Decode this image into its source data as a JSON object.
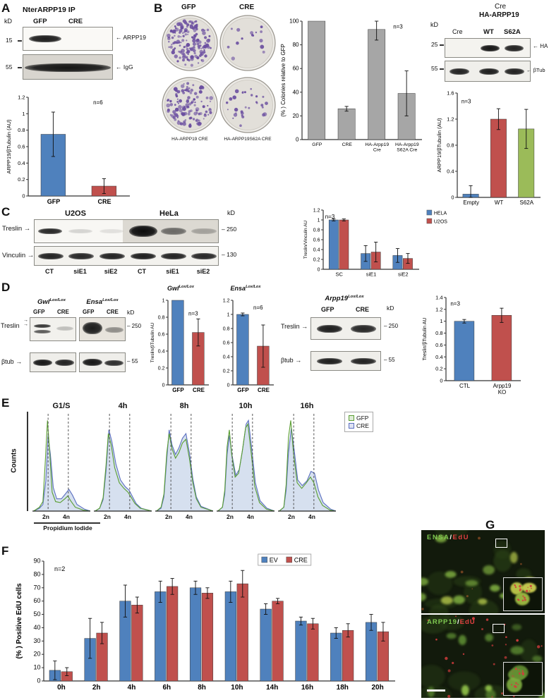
{
  "colors": {
    "blue": "#4f81bd",
    "red": "#c0504d",
    "green": "#9bbb59",
    "gray_bar": "#a6a6a6",
    "gfp_curve": "#5a9e32",
    "cre_curve": "#5b6fc0",
    "cre_fill": "#aec1e0",
    "colony": "#6b4fa0",
    "ensa_green": "#7ec850",
    "edu_red": "#e04040"
  },
  "panelA": {
    "label": "A",
    "blot_title": "NterARPP19 IP",
    "kd": "kD",
    "lanes": [
      "GFP",
      "CRE"
    ],
    "marker_15": "15",
    "marker_55": "55",
    "arrow_arpp19": "← ARPP19",
    "arrow_igg": "← IgG",
    "chart": {
      "type": "bar",
      "n": "n=6",
      "ylabel": "ARPP19/βTubulin (AU)",
      "categories": [
        "GFP",
        "CRE"
      ],
      "series": [
        {
          "name": "",
          "colors_per_bar": [
            "#4f81bd",
            "#c0504d"
          ],
          "values": [
            0.75,
            0.12
          ],
          "errors": [
            0.27,
            0.09
          ]
        }
      ],
      "ylim": [
        0,
        1.2
      ],
      "ystep": 0.2
    }
  },
  "panelB": {
    "label": "B",
    "dish_top_labels": [
      "GFP",
      "CRE"
    ],
    "dish_bottom_labels": [
      "HA-ARPP19 CRE",
      "HA-ARPP19S62A CRE"
    ],
    "dishes": [
      {
        "colonies": 150,
        "seed": 7
      },
      {
        "colonies": 15,
        "seed": 11
      },
      {
        "colonies": 120,
        "seed": 13
      },
      {
        "colonies": 30,
        "seed": 17
      }
    ],
    "chart": {
      "type": "bar",
      "n": "n=3",
      "ylabel": "(% ) Colonies relative to GFP",
      "categories": [
        "GFP",
        "CRE",
        "HA-Arpp19\nCre",
        "HA-Arpp19\nS62A Cre"
      ],
      "series": [
        {
          "name": "",
          "color": "#a6a6a6",
          "values": [
            100,
            26,
            93,
            39
          ],
          "errors": [
            0,
            2,
            9,
            19
          ]
        }
      ],
      "ylim": [
        0,
        100
      ],
      "ystep": 20
    },
    "blot": {
      "header_line1": "Cre",
      "header_line2": "HA-ARPP19",
      "kd": "kD",
      "lanes": [
        "Cre",
        "WT",
        "S62A"
      ],
      "marker_25": "25",
      "marker_55": "55",
      "arrow_ha": "← HA",
      "arrow_btub": "← βTub"
    },
    "chart2": {
      "type": "bar",
      "n": "n=3",
      "ylabel": "ARPP19/βTubulin (AU)",
      "categories": [
        "Empty",
        "WT",
        "S62A"
      ],
      "series": [
        {
          "name": "",
          "colors_per_bar": [
            "#4f81bd",
            "#c0504d",
            "#9bbb59"
          ],
          "values": [
            0.05,
            1.2,
            1.05
          ],
          "errors": [
            0.13,
            0.16,
            0.3
          ]
        }
      ],
      "ylim": [
        0,
        1.6
      ],
      "ystep": 0.4
    }
  },
  "panelC": {
    "label": "C",
    "cell_lines": [
      "U2OS",
      "HeLa"
    ],
    "kd": "kD",
    "row_treslin": "Treslin →",
    "row_vinculin": "Vinculin →",
    "marker_250": "– 250",
    "marker_130": "– 130",
    "lanes": [
      "CT",
      "siE1",
      "siE2",
      "CT",
      "siE1",
      "siE2"
    ],
    "chart": {
      "type": "bar",
      "n": "n=3",
      "ylabel": "Treslin/Vinculin AU",
      "categories": [
        "SC",
        "siE1",
        "siE2"
      ],
      "series": [
        {
          "name": "HELA",
          "color": "#4f81bd",
          "values": [
            1.0,
            0.32,
            0.28
          ],
          "errors": [
            0.02,
            0.16,
            0.14
          ]
        },
        {
          "name": "U2OS",
          "color": "#c0504d",
          "values": [
            1.0,
            0.35,
            0.22
          ],
          "errors": [
            0.02,
            0.2,
            0.1
          ]
        }
      ],
      "ylim": [
        0,
        1.2
      ],
      "ystep": 0.2
    }
  },
  "panelD": {
    "label": "D",
    "kd": "kD",
    "header1": {
      "gene": "Gwl",
      "sup": "Lox/Lox"
    },
    "header2": {
      "gene": "Ensa",
      "sup": "Lox/Lox"
    },
    "lanes": [
      "GFP",
      "CRE",
      "GFP",
      "CRE"
    ],
    "row_treslin": "Treslin",
    "arrow": "→",
    "row_btub": "βtub →",
    "marker_250": "– 250",
    "marker_55": "– 55",
    "chart1": {
      "title": {
        "gene": "Gwl",
        "sup": "Lox/Lox"
      },
      "n": "n=3",
      "ylabel": "Treslin/βTubulin AU",
      "categories": [
        "GFP",
        "CRE"
      ],
      "series": [
        {
          "name": "",
          "colors_per_bar": [
            "#4f81bd",
            "#c0504d"
          ],
          "values": [
            1.0,
            0.62
          ],
          "errors": [
            0,
            0.16
          ]
        }
      ],
      "ylim": [
        0,
        1.0
      ],
      "ystep": 0.2
    },
    "chart2": {
      "title": {
        "gene": "Ensa",
        "sup": "Lox/Lox"
      },
      "n": "n=6",
      "ylabel": "",
      "categories": [
        "GFP",
        "CRE"
      ],
      "series": [
        {
          "name": "",
          "colors_per_bar": [
            "#4f81bd",
            "#c0504d"
          ],
          "values": [
            1.0,
            0.55
          ],
          "errors": [
            0.02,
            0.3
          ]
        }
      ],
      "ylim": [
        0,
        1.2
      ],
      "ystep": 0.2
    },
    "blot2": {
      "header": {
        "gene": "Arpp19",
        "sup": "Lox/Lox"
      },
      "kd": "kD",
      "lanes": [
        "GFP",
        "CRE"
      ],
      "row_treslin": "Treslin →",
      "row_btub": "βtub →",
      "marker_250": "– 250",
      "marker_55": "– 55"
    },
    "chart3": {
      "n": "n=3",
      "ylabel": "Treslin/βTubulin AU",
      "categories": [
        "CTL",
        "Arpp19\nKO"
      ],
      "series": [
        {
          "name": "",
          "colors_per_bar": [
            "#4f81bd",
            "#c0504d"
          ],
          "values": [
            1.0,
            1.1
          ],
          "errors": [
            0.03,
            0.12
          ]
        }
      ],
      "ylim": [
        0,
        1.4
      ],
      "ystep": 0.2
    }
  },
  "panelE": {
    "label": "E",
    "ylabel": "Counts",
    "xlabel": "Propidium Iodide",
    "tick2n": "2n",
    "tick4n": "4n",
    "legend": [
      {
        "label": "GFP",
        "color": "#5a9e32"
      },
      {
        "label": "CRE",
        "color": "#5b6fc0"
      }
    ],
    "histograms": [
      {
        "title": "G1/S",
        "gfp": [
          [
            2,
            0
          ],
          [
            12,
            4
          ],
          [
            18,
            10
          ],
          [
            22,
            50
          ],
          [
            26,
            96
          ],
          [
            30,
            60
          ],
          [
            34,
            20
          ],
          [
            40,
            10
          ],
          [
            48,
            9
          ],
          [
            56,
            13
          ],
          [
            61,
            16
          ],
          [
            66,
            11
          ],
          [
            74,
            4
          ],
          [
            88,
            1
          ],
          [
            100,
            0
          ]
        ],
        "cre": [
          [
            2,
            0
          ],
          [
            12,
            3
          ],
          [
            18,
            7
          ],
          [
            23,
            32
          ],
          [
            27,
            80
          ],
          [
            31,
            60
          ],
          [
            36,
            25
          ],
          [
            42,
            13
          ],
          [
            50,
            13
          ],
          [
            58,
            19
          ],
          [
            63,
            23
          ],
          [
            69,
            17
          ],
          [
            77,
            7
          ],
          [
            90,
            2
          ],
          [
            100,
            0
          ]
        ]
      },
      {
        "title": "4h",
        "gfp": [
          [
            2,
            0
          ],
          [
            10,
            3
          ],
          [
            16,
            14
          ],
          [
            21,
            48
          ],
          [
            25,
            82
          ],
          [
            30,
            70
          ],
          [
            36,
            46
          ],
          [
            44,
            30
          ],
          [
            52,
            24
          ],
          [
            59,
            20
          ],
          [
            65,
            14
          ],
          [
            71,
            8
          ],
          [
            80,
            3
          ],
          [
            100,
            0
          ]
        ],
        "cre": [
          [
            2,
            0
          ],
          [
            10,
            3
          ],
          [
            16,
            12
          ],
          [
            21,
            42
          ],
          [
            26,
            86
          ],
          [
            31,
            74
          ],
          [
            38,
            50
          ],
          [
            46,
            33
          ],
          [
            54,
            26
          ],
          [
            61,
            22
          ],
          [
            67,
            15
          ],
          [
            73,
            8
          ],
          [
            82,
            3
          ],
          [
            100,
            0
          ]
        ]
      },
      {
        "title": "8h",
        "gfp": [
          [
            2,
            0
          ],
          [
            10,
            4
          ],
          [
            15,
            18
          ],
          [
            20,
            62
          ],
          [
            24,
            82
          ],
          [
            29,
            66
          ],
          [
            35,
            56
          ],
          [
            41,
            62
          ],
          [
            47,
            72
          ],
          [
            53,
            76
          ],
          [
            59,
            56
          ],
          [
            65,
            30
          ],
          [
            71,
            13
          ],
          [
            79,
            4
          ],
          [
            100,
            0
          ]
        ],
        "cre": [
          [
            2,
            0
          ],
          [
            10,
            3
          ],
          [
            15,
            15
          ],
          [
            20,
            56
          ],
          [
            24,
            86
          ],
          [
            29,
            70
          ],
          [
            35,
            60
          ],
          [
            41,
            67
          ],
          [
            47,
            77
          ],
          [
            53,
            82
          ],
          [
            59,
            62
          ],
          [
            65,
            34
          ],
          [
            71,
            15
          ],
          [
            79,
            5
          ],
          [
            100,
            0
          ]
        ]
      },
      {
        "title": "10h",
        "gfp": [
          [
            2,
            0
          ],
          [
            10,
            4
          ],
          [
            14,
            22
          ],
          [
            18,
            68
          ],
          [
            22,
            86
          ],
          [
            26,
            60
          ],
          [
            32,
            36
          ],
          [
            38,
            40
          ],
          [
            44,
            62
          ],
          [
            50,
            88
          ],
          [
            54,
            92
          ],
          [
            60,
            60
          ],
          [
            66,
            26
          ],
          [
            74,
            9
          ],
          [
            86,
            2
          ],
          [
            100,
            0
          ]
        ],
        "cre": [
          [
            2,
            0
          ],
          [
            10,
            4
          ],
          [
            14,
            18
          ],
          [
            18,
            60
          ],
          [
            22,
            80
          ],
          [
            27,
            58
          ],
          [
            33,
            38
          ],
          [
            39,
            44
          ],
          [
            45,
            66
          ],
          [
            51,
            92
          ],
          [
            55,
            96
          ],
          [
            61,
            64
          ],
          [
            67,
            30
          ],
          [
            75,
            11
          ],
          [
            87,
            3
          ],
          [
            100,
            0
          ]
        ]
      },
      {
        "title": "16h",
        "gfp": [
          [
            2,
            0
          ],
          [
            10,
            4
          ],
          [
            14,
            28
          ],
          [
            18,
            78
          ],
          [
            22,
            96
          ],
          [
            27,
            60
          ],
          [
            33,
            30
          ],
          [
            41,
            24
          ],
          [
            49,
            30
          ],
          [
            56,
            36
          ],
          [
            62,
            30
          ],
          [
            69,
            15
          ],
          [
            77,
            6
          ],
          [
            90,
            1
          ],
          [
            100,
            0
          ]
        ],
        "cre": [
          [
            2,
            0
          ],
          [
            10,
            4
          ],
          [
            14,
            22
          ],
          [
            18,
            62
          ],
          [
            23,
            88
          ],
          [
            28,
            64
          ],
          [
            34,
            33
          ],
          [
            42,
            27
          ],
          [
            50,
            32
          ],
          [
            57,
            42
          ],
          [
            63,
            40
          ],
          [
            70,
            22
          ],
          [
            78,
            9
          ],
          [
            91,
            2
          ],
          [
            100,
            0
          ]
        ]
      }
    ]
  },
  "panelF": {
    "label": "F",
    "chart": {
      "type": "bar",
      "n": "n=2",
      "ylabel": "(% ) Positive EdU cells",
      "categories": [
        "0h",
        "2h",
        "4h",
        "6h",
        "8h",
        "10h",
        "14h",
        "16h",
        "18h",
        "20h"
      ],
      "series": [
        {
          "name": "EV",
          "color": "#4f81bd",
          "values": [
            8,
            32,
            60,
            67,
            70,
            67,
            54,
            45,
            36,
            44
          ],
          "errors": [
            7,
            15,
            12,
            8,
            5,
            8,
            4,
            3,
            4,
            6
          ]
        },
        {
          "name": "CRE",
          "color": "#c0504d",
          "values": [
            7,
            36,
            57,
            71,
            66,
            73,
            60,
            43,
            38,
            37
          ],
          "errors": [
            3,
            8,
            6,
            6,
            4,
            10,
            2,
            4,
            5,
            7
          ]
        }
      ],
      "ylim": [
        0,
        90
      ],
      "ystep": 10
    }
  },
  "panelG": {
    "label": "G",
    "image1": {
      "protein": "ENSA",
      "sep": "/",
      "marker": "EdU"
    },
    "image2": {
      "protein": "ARPP19",
      "sep": "/",
      "marker": "EdU"
    }
  }
}
